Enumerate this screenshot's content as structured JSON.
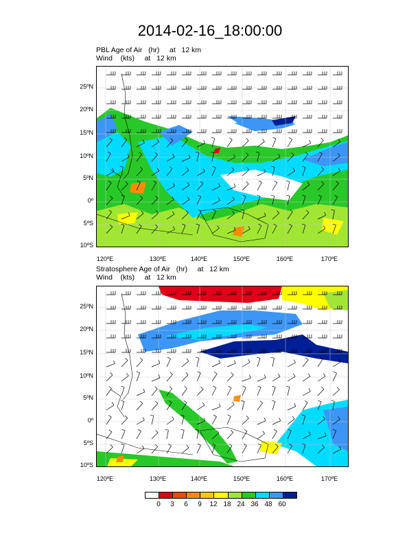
{
  "title": "2014-02-16_18:00:00",
  "panels": [
    {
      "field_line": "PBL Age of Air   (hr)     at   12 km",
      "wind_line": "Wind    (kts)     at   12 km"
    },
    {
      "field_line": "Stratosphere Age of Air   (hr)     at   12 km",
      "wind_line": "Wind    (kts)     at   12 km"
    }
  ],
  "axes": {
    "lat_labels": [
      "25ºN",
      "20ºN",
      "15ºN",
      "10ºN",
      "5ºN",
      "0º",
      "5ºS",
      "10ºS"
    ],
    "lon_labels": [
      "120ºE",
      "130ºE",
      "140ºE",
      "150ºE",
      "160ºE",
      "170ºE"
    ]
  },
  "colorbar": {
    "labels": [
      "0",
      "3",
      "6",
      "9",
      "12",
      "18",
      "24",
      "36",
      "48",
      "60"
    ],
    "colors": [
      "#ffffff",
      "#e0001a",
      "#f04a00",
      "#f88c00",
      "#f8c800",
      "#ffff00",
      "#a0e632",
      "#28c828",
      "#00dcff",
      "#3c96f5",
      "#001e96"
    ]
  },
  "colors": {
    "red": "#e0001a",
    "orange": "#f88c00",
    "yellow": "#ffff00",
    "lightgreen": "#a0e632",
    "green": "#28c828",
    "cyan": "#00dcff",
    "blue": "#3c96f5",
    "darkblue": "#001e96"
  }
}
